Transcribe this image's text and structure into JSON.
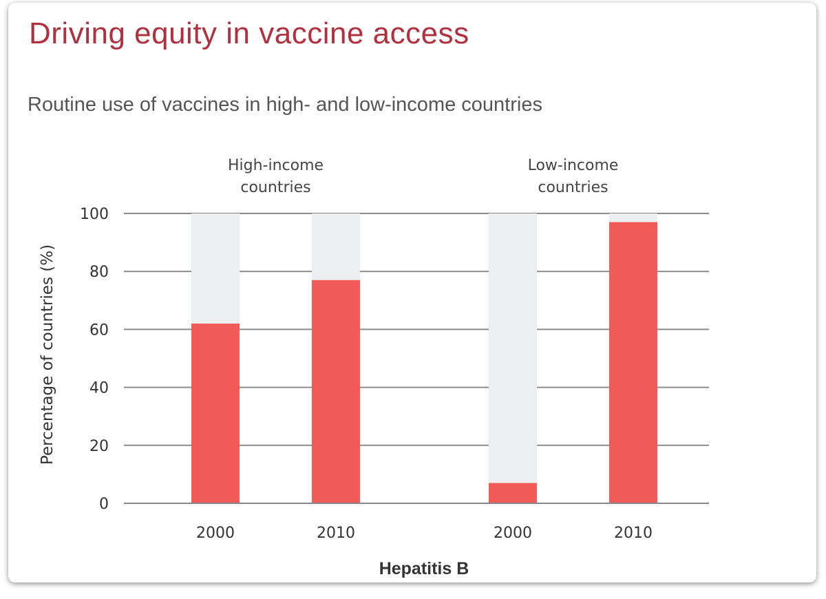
{
  "title": "Driving equity in vaccine access",
  "subtitle": "Routine use of vaccines in high- and low-income countries",
  "colors": {
    "bar": "#f25a58",
    "background_bar": "#eceef0",
    "grid": "#8a8a8a",
    "title": "#b0303f"
  },
  "chart_data": {
    "type": "bar",
    "title": "Routine use of vaccines in high- and low-income countries",
    "xlabel": "Hepatitis B",
    "ylabel": "Percentage of countries (%)",
    "ylim": [
      0,
      100
    ],
    "yticks": [
      "0",
      "20",
      "40",
      "60",
      "80",
      "100"
    ],
    "grid": true,
    "groups": [
      {
        "label_line1": "High-income",
        "label_line2": "countries",
        "bars": [
          {
            "category": "2000",
            "value": 62
          },
          {
            "category": "2010",
            "value": 77
          }
        ]
      },
      {
        "label_line1": "Low-income",
        "label_line2": "countries",
        "bars": [
          {
            "category": "2000",
            "value": 7
          },
          {
            "category": "2010",
            "value": 97
          }
        ]
      }
    ]
  }
}
